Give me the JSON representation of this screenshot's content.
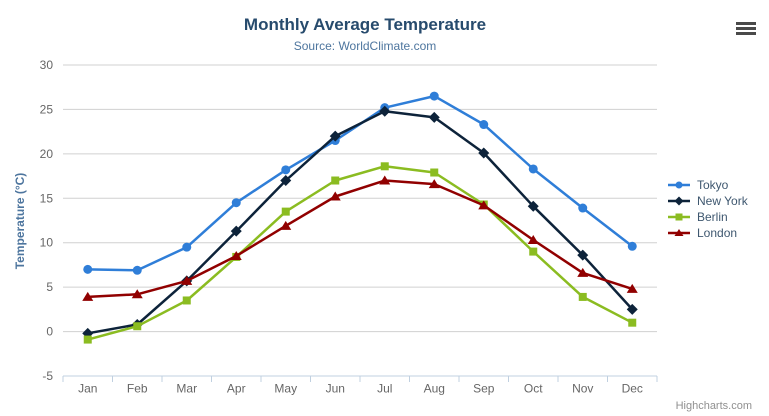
{
  "header": {
    "title": "Monthly Average Temperature",
    "subtitle": "Source: WorldClimate.com"
  },
  "footer": {
    "credits": "Highcharts.com"
  },
  "icons": {
    "context_menu": "hamburger-menu-icon"
  },
  "colors": {
    "title": "#274b6d",
    "subtitle": "#4d759e",
    "axis_title": "#4d759e",
    "axis_label": "#666666",
    "grid": "#d0d0d0",
    "axis_line": "#c0d0e0",
    "legend_text": "#3e576f",
    "credits": "#909090",
    "menu_icon": "#4a4a4a"
  },
  "chart_data": {
    "type": "line",
    "title": "Monthly Average Temperature",
    "subtitle": "Source: WorldClimate.com",
    "xlabel": "",
    "ylabel": "Temperature (°C)",
    "ylim": [
      -5,
      30
    ],
    "ytick_step": 5,
    "grid": true,
    "legend_position": "right",
    "categories": [
      "Jan",
      "Feb",
      "Mar",
      "Apr",
      "May",
      "Jun",
      "Jul",
      "Aug",
      "Sep",
      "Oct",
      "Nov",
      "Dec"
    ],
    "series": [
      {
        "name": "Tokyo",
        "color": "#2f7ed8",
        "marker": "circle",
        "values": [
          7.0,
          6.9,
          9.5,
          14.5,
          18.2,
          21.5,
          25.2,
          26.5,
          23.3,
          18.3,
          13.9,
          9.6
        ]
      },
      {
        "name": "New York",
        "color": "#0d233a",
        "marker": "diamond",
        "values": [
          -0.2,
          0.8,
          5.7,
          11.3,
          17.0,
          22.0,
          24.8,
          24.1,
          20.1,
          14.1,
          8.6,
          2.5
        ]
      },
      {
        "name": "Berlin",
        "color": "#8bbc21",
        "marker": "square",
        "values": [
          -0.9,
          0.6,
          3.5,
          8.4,
          13.5,
          17.0,
          18.6,
          17.9,
          14.3,
          9.0,
          3.9,
          1.0
        ]
      },
      {
        "name": "London",
        "color": "#910000",
        "marker": "triangle",
        "values": [
          3.9,
          4.2,
          5.7,
          8.5,
          11.9,
          15.2,
          17.0,
          16.6,
          14.2,
          10.3,
          6.6,
          4.8
        ]
      }
    ]
  }
}
